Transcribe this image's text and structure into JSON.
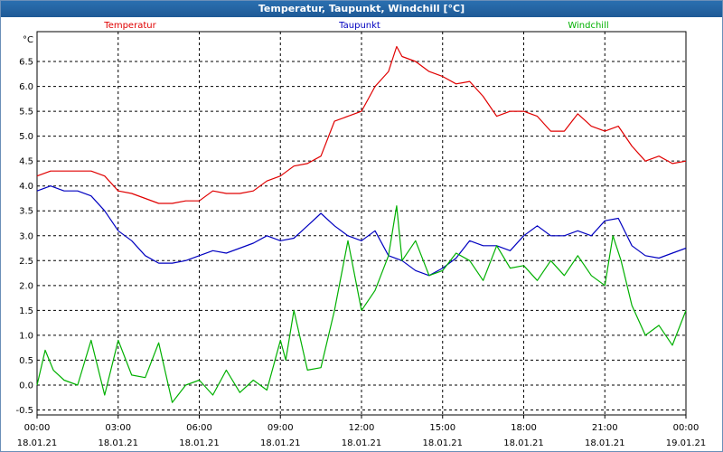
{
  "window": {
    "title": "Temperatur, Taupunkt, Windchill [°C]"
  },
  "chart_data": {
    "type": "line",
    "title": "Temperatur, Taupunkt, Windchill [°C]",
    "ylabel": "°C",
    "ylim": [
      -0.6,
      7.1
    ],
    "y_ticks": [
      "-0.5",
      "0.0",
      "0.5",
      "1.0",
      "1.5",
      "2.0",
      "2.5",
      "3.0",
      "3.5",
      "4.0",
      "4.5",
      "5.0",
      "5.5",
      "6.0",
      "6.5"
    ],
    "x_ticks": [
      {
        "time": "00:00",
        "date": "18.01.21"
      },
      {
        "time": "03:00",
        "date": "18.01.21"
      },
      {
        "time": "06:00",
        "date": "18.01.21"
      },
      {
        "time": "09:00",
        "date": "18.01.21"
      },
      {
        "time": "12:00",
        "date": "18.01.21"
      },
      {
        "time": "15:00",
        "date": "18.01.21"
      },
      {
        "time": "18:00",
        "date": "18.01.21"
      },
      {
        "time": "21:00",
        "date": "18.01.21"
      },
      {
        "time": "00:00",
        "date": "19.01.21"
      }
    ],
    "xlim_hours": [
      0,
      24
    ],
    "grid": true,
    "legend_position": "top",
    "series": [
      {
        "name": "Temperatur",
        "color": "#e00000",
        "x": [
          0,
          0.5,
          1,
          1.5,
          2,
          2.5,
          3,
          3.5,
          4,
          4.5,
          5,
          5.5,
          6,
          6.5,
          7,
          7.5,
          8,
          8.5,
          9,
          9.5,
          10,
          10.5,
          11,
          11.5,
          12,
          12.5,
          13,
          13.3,
          13.5,
          14,
          14.5,
          15,
          15.5,
          16,
          16.5,
          17,
          17.5,
          18,
          18.5,
          19,
          19.5,
          20,
          20.5,
          21,
          21.5,
          22,
          22.5,
          23,
          23.5,
          24
        ],
        "y": [
          4.2,
          4.3,
          4.3,
          4.3,
          4.3,
          4.2,
          3.9,
          3.85,
          3.75,
          3.65,
          3.65,
          3.7,
          3.7,
          3.9,
          3.85,
          3.85,
          3.9,
          4.1,
          4.2,
          4.4,
          4.45,
          4.6,
          5.3,
          5.4,
          5.5,
          6.0,
          6.3,
          6.8,
          6.6,
          6.5,
          6.3,
          6.2,
          6.05,
          6.1,
          5.8,
          5.4,
          5.5,
          5.5,
          5.4,
          5.1,
          5.1,
          5.45,
          5.2,
          5.1,
          5.2,
          4.8,
          4.5,
          4.6,
          4.45,
          4.5
        ]
      },
      {
        "name": "Taupunkt",
        "color": "#0000c0",
        "x": [
          0,
          0.5,
          1,
          1.5,
          2,
          2.5,
          3,
          3.5,
          4,
          4.5,
          5,
          5.5,
          6,
          6.5,
          7,
          7.5,
          8,
          8.5,
          9,
          9.5,
          10,
          10.5,
          11,
          11.5,
          12,
          12.5,
          13,
          13.5,
          14,
          14.5,
          15,
          15.5,
          16,
          16.5,
          17,
          17.5,
          18,
          18.5,
          19,
          19.5,
          20,
          20.5,
          21,
          21.5,
          22,
          22.5,
          23,
          23.5,
          24
        ],
        "y": [
          3.9,
          4.0,
          3.9,
          3.9,
          3.8,
          3.5,
          3.1,
          2.9,
          2.6,
          2.45,
          2.45,
          2.5,
          2.6,
          2.7,
          2.65,
          2.75,
          2.85,
          3.0,
          2.9,
          2.95,
          3.2,
          3.45,
          3.2,
          3.0,
          2.9,
          3.1,
          2.6,
          2.5,
          2.3,
          2.2,
          2.35,
          2.55,
          2.9,
          2.8,
          2.8,
          2.7,
          3.0,
          3.2,
          3.0,
          3.0,
          3.1,
          3.0,
          3.3,
          3.35,
          2.8,
          2.6,
          2.55,
          2.65,
          2.75
        ]
      },
      {
        "name": "Windchill",
        "color": "#00b000",
        "x": [
          0,
          0.3,
          0.6,
          1,
          1.5,
          2,
          2.5,
          3,
          3.5,
          4,
          4.5,
          5,
          5.5,
          6,
          6.5,
          7,
          7.5,
          8,
          8.5,
          9,
          9.2,
          9.5,
          10,
          10.5,
          11,
          11.5,
          12,
          12.5,
          13,
          13.3,
          13.5,
          14,
          14.5,
          15,
          15.5,
          16,
          16.5,
          17,
          17.5,
          18,
          18.5,
          19,
          19.5,
          20,
          20.5,
          21,
          21.3,
          21.6,
          22,
          22.5,
          23,
          23.5,
          24
        ],
        "y": [
          0.0,
          0.7,
          0.3,
          0.1,
          0.0,
          0.9,
          -0.2,
          0.9,
          0.2,
          0.15,
          0.85,
          -0.35,
          0.0,
          0.1,
          -0.2,
          0.3,
          -0.15,
          0.1,
          -0.1,
          0.9,
          0.5,
          1.5,
          0.3,
          0.35,
          1.5,
          2.9,
          1.5,
          1.9,
          2.6,
          3.6,
          2.5,
          2.9,
          2.2,
          2.3,
          2.65,
          2.5,
          2.1,
          2.8,
          2.35,
          2.4,
          2.1,
          2.5,
          2.2,
          2.6,
          2.2,
          2.0,
          3.0,
          2.5,
          1.6,
          1.0,
          1.2,
          0.8,
          1.5
        ]
      }
    ]
  }
}
